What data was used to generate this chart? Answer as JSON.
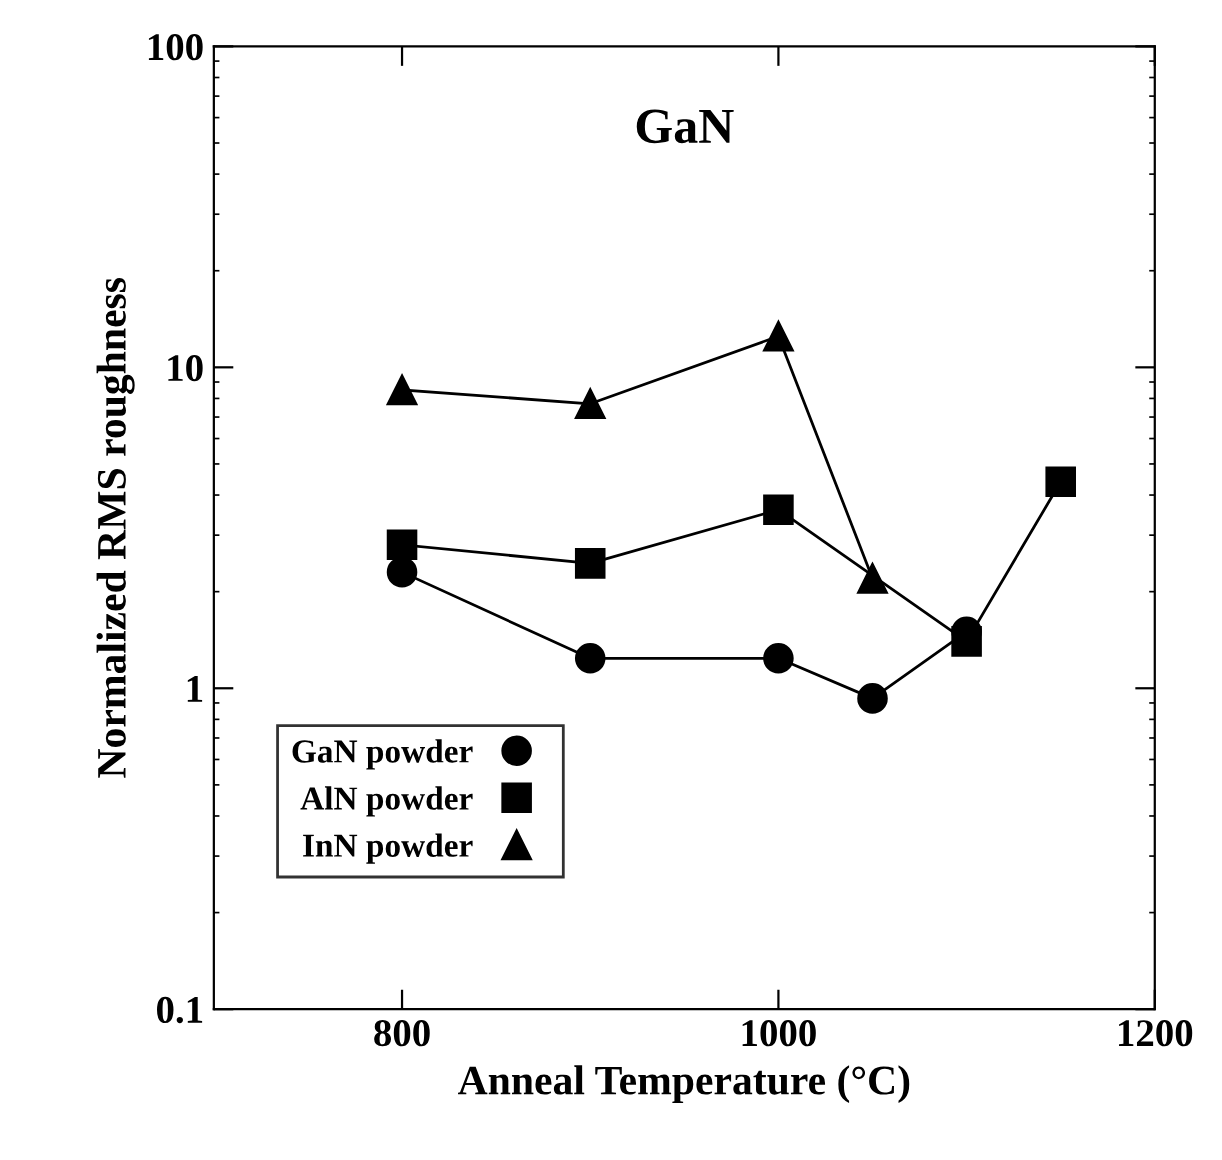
{
  "chart_data": {
    "type": "line",
    "title": "GaN",
    "xlabel": "Anneal Temperature (°C)",
    "ylabel": "Normalized RMS roughness",
    "xlim": [
      700,
      1200
    ],
    "xticks": [
      800,
      1000,
      1200
    ],
    "ylim": [
      0.1,
      100
    ],
    "yticks": [
      0.1,
      1,
      10,
      100
    ],
    "log": "y",
    "grid": false,
    "legend": "bottom left",
    "series": [
      {
        "name": "GaN powder",
        "color": "#000000",
        "marker": "circle",
        "x": [
          800,
          900,
          1000,
          1050,
          1100
        ],
        "values": [
          2.3,
          1.24,
          1.24,
          0.93,
          1.5
        ]
      },
      {
        "name": "AlN powder",
        "color": "#000000",
        "marker": "square",
        "x": [
          800,
          900,
          1000,
          1100,
          1150
        ],
        "values": [
          2.8,
          2.45,
          3.6,
          1.4,
          4.4
        ]
      },
      {
        "name": "InN powder",
        "color": "#000000",
        "marker": "triangle",
        "x": [
          800,
          900,
          1000,
          1050
        ],
        "values": [
          8.5,
          7.7,
          12.5,
          2.2
        ]
      }
    ]
  }
}
